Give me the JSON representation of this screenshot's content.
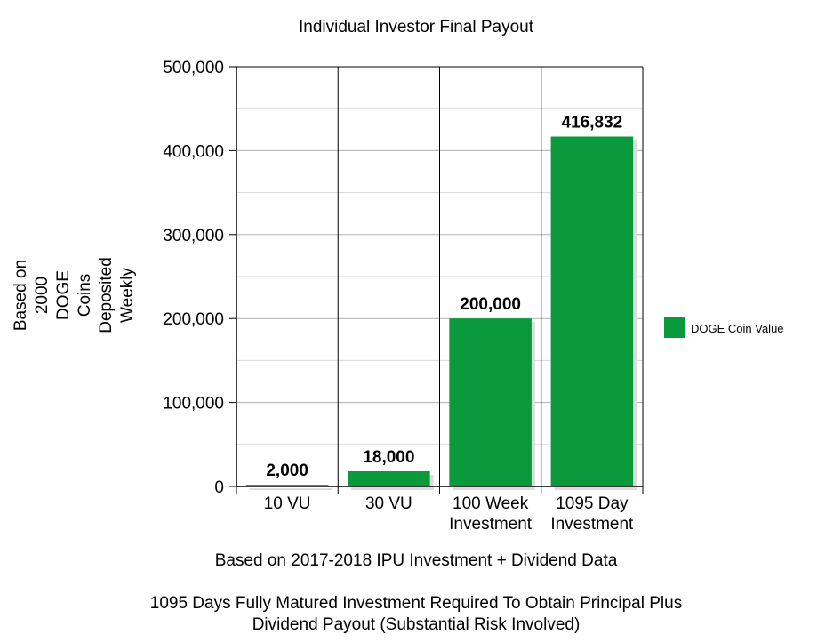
{
  "chart_data": {
    "type": "bar",
    "title": "Individual Investor Final Payout",
    "categories": [
      [
        "10 VU"
      ],
      [
        "30 VU"
      ],
      [
        "100 Week",
        "Investment"
      ],
      [
        "1095 Day",
        "Investment"
      ]
    ],
    "series": [
      {
        "name": "DOGE Coin Value",
        "values": [
          2000,
          18000,
          200000,
          416832
        ],
        "color": "#0b9a3b"
      }
    ],
    "data_labels": [
      "2,000",
      "18,000",
      "200,000",
      "416,832"
    ],
    "ylabel_lines": [
      "Based on",
      "2000",
      "DOGE",
      "Coins",
      "Deposited",
      "Weekly"
    ],
    "xlabel": "",
    "ylim": [
      0,
      500000
    ],
    "y_ticks": [
      0,
      100000,
      200000,
      300000,
      400000,
      500000
    ],
    "y_tick_labels": [
      "0",
      "100,000",
      "200,000",
      "300,000",
      "400,000",
      "500,000"
    ],
    "grid": true,
    "legend_position": "right"
  },
  "notes": {
    "basis": "Based on 2017-2018 IPU Investment + Dividend Data",
    "risk_line1": "1095 Days Fully Matured Investment Required To Obtain Principal Plus",
    "risk_line2": "Dividend Payout (Substantial Risk Involved)"
  }
}
